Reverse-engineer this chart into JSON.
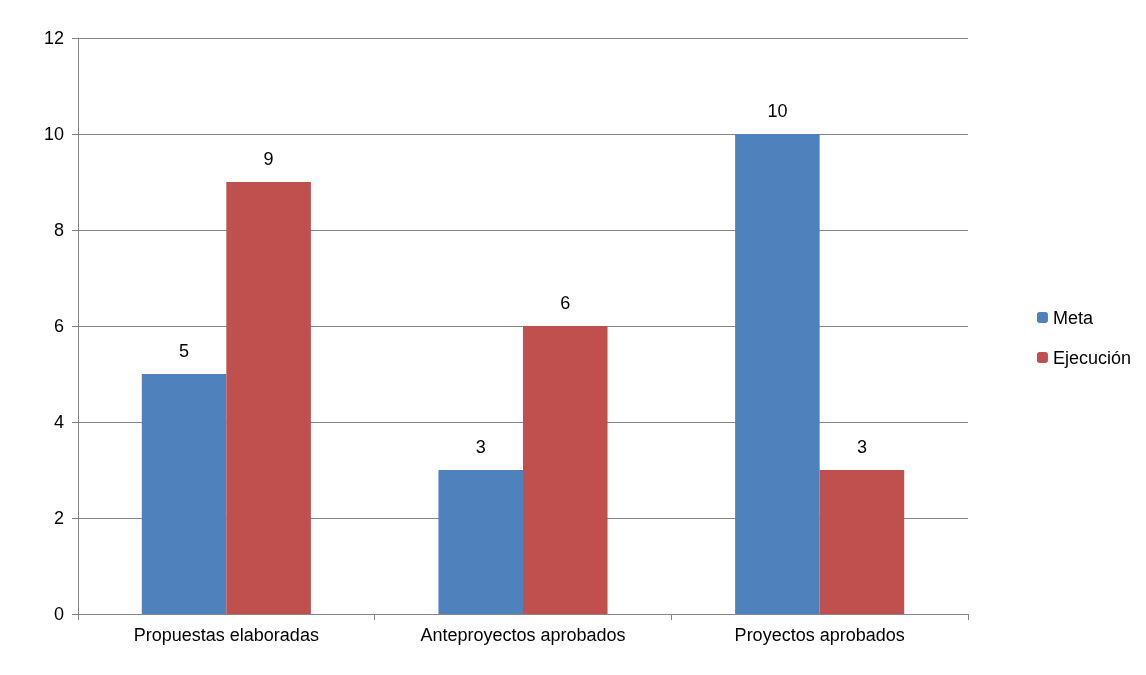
{
  "chart_data": {
    "type": "bar",
    "categories": [
      "Propuestas elaboradas",
      "Anteproyectos aprobados",
      "Proyectos aprobados"
    ],
    "series": [
      {
        "name": "Meta",
        "color": "#4f81bd",
        "values": [
          5,
          3,
          10
        ]
      },
      {
        "name": "Ejecución",
        "color": "#c0504d",
        "values": [
          9,
          6,
          3
        ]
      }
    ],
    "ylim": [
      0,
      12
    ],
    "yticks": [
      0,
      2,
      4,
      6,
      8,
      10,
      12
    ],
    "grid": "y",
    "legend": "right",
    "data_labels": true
  }
}
